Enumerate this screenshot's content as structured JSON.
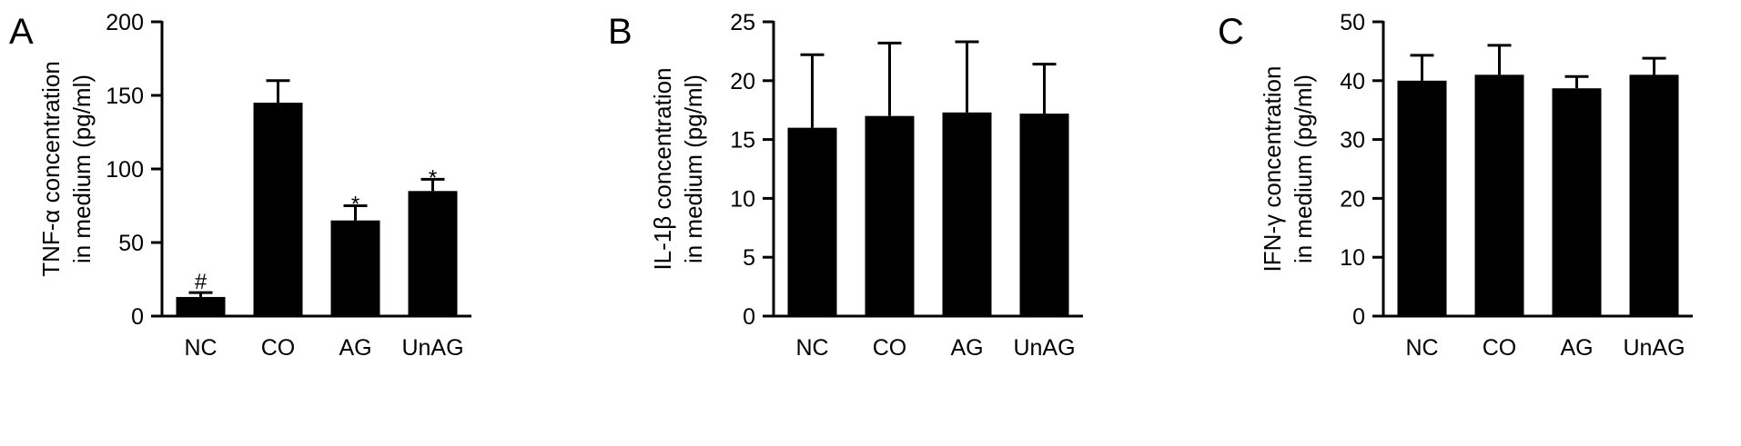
{
  "chart_data": [
    {
      "type": "bar",
      "panel": "A",
      "categories": [
        "NC",
        "CO",
        "AG",
        "UnAG"
      ],
      "series": [
        {
          "values": [
            13,
            145,
            65,
            85
          ],
          "error": [
            3,
            15,
            10,
            8
          ]
        }
      ],
      "annotations": [
        "#",
        "",
        "*",
        "*"
      ],
      "ylabel_lines": [
        "TNF-α concentration",
        "in medium (pg/ml)"
      ],
      "ylim": [
        0,
        200
      ],
      "yticks": [
        0,
        50,
        100,
        150,
        200
      ],
      "colors": {
        "bar": "#000000"
      },
      "grid": false
    },
    {
      "type": "bar",
      "panel": "B",
      "categories": [
        "NC",
        "CO",
        "AG",
        "UnAG"
      ],
      "series": [
        {
          "values": [
            16,
            17,
            17.3,
            17.2
          ],
          "error": [
            6.2,
            6.2,
            6,
            4.2
          ]
        }
      ],
      "annotations": [
        "",
        "",
        "",
        ""
      ],
      "ylabel_lines": [
        "IL-1β concentration",
        "in medium (pg/ml)"
      ],
      "ylim": [
        0,
        25
      ],
      "yticks": [
        0,
        5,
        10,
        15,
        20,
        25
      ],
      "colors": {
        "bar": "#000000"
      },
      "grid": false
    },
    {
      "type": "bar",
      "panel": "C",
      "categories": [
        "NC",
        "CO",
        "AG",
        "UnAG"
      ],
      "series": [
        {
          "values": [
            40,
            41,
            38.7,
            41
          ],
          "error": [
            4.3,
            5,
            2,
            2.8
          ]
        }
      ],
      "annotations": [
        "",
        "",
        "",
        ""
      ],
      "ylabel_lines": [
        "IFN-γ concentration",
        "in medium (pg/ml)"
      ],
      "ylim": [
        0,
        50
      ],
      "yticks": [
        0,
        10,
        20,
        30,
        40,
        50
      ],
      "colors": {
        "bar": "#000000"
      },
      "grid": false
    }
  ]
}
